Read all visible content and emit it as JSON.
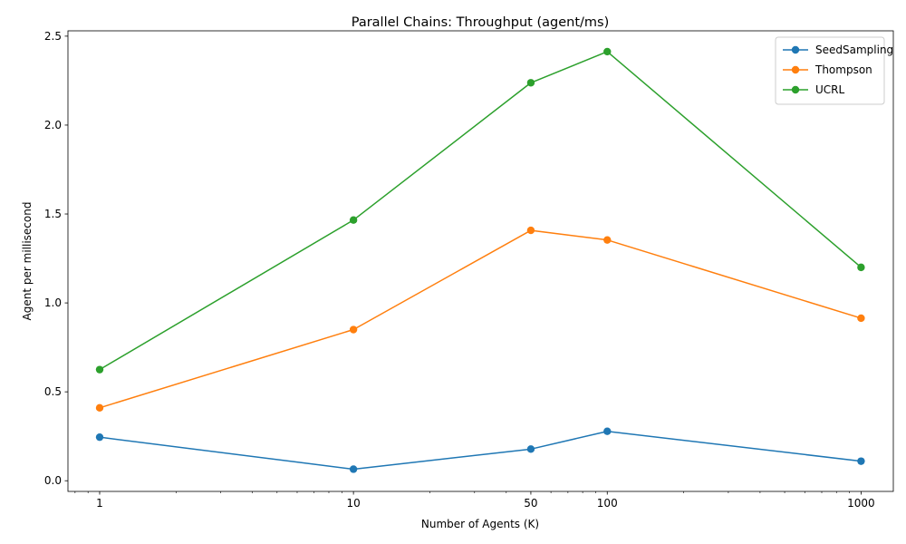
{
  "chart_data": {
    "type": "line",
    "title": "Parallel Chains: Throughput (agent/ms)",
    "xlabel": "Number of Agents (K)",
    "ylabel": "Agent per millisecond",
    "x_scale": "log",
    "x": [
      1,
      10,
      50,
      100,
      1000
    ],
    "x_tick_labels": [
      "1",
      "10",
      "50",
      "100",
      "1000"
    ],
    "xlim": [
      0.75,
      1340
    ],
    "ylim": [
      -0.06,
      2.53
    ],
    "y_ticks": [
      0.0,
      0.5,
      1.0,
      1.5,
      2.0,
      2.5
    ],
    "y_tick_labels": [
      "0.0",
      "0.5",
      "1.0",
      "1.5",
      "2.0",
      "2.5"
    ],
    "grid": false,
    "legend_position": "top-right",
    "series": [
      {
        "name": "SeedSampling",
        "color": "#1f77b4",
        "values": [
          0.245,
          0.065,
          0.178,
          0.278,
          0.11
        ]
      },
      {
        "name": "Thompson",
        "color": "#ff7f0e",
        "values": [
          0.41,
          0.85,
          1.408,
          1.354,
          0.914
        ]
      },
      {
        "name": "UCRL",
        "color": "#2ca02c",
        "values": [
          0.625,
          1.466,
          2.238,
          2.413,
          1.2
        ]
      }
    ]
  }
}
